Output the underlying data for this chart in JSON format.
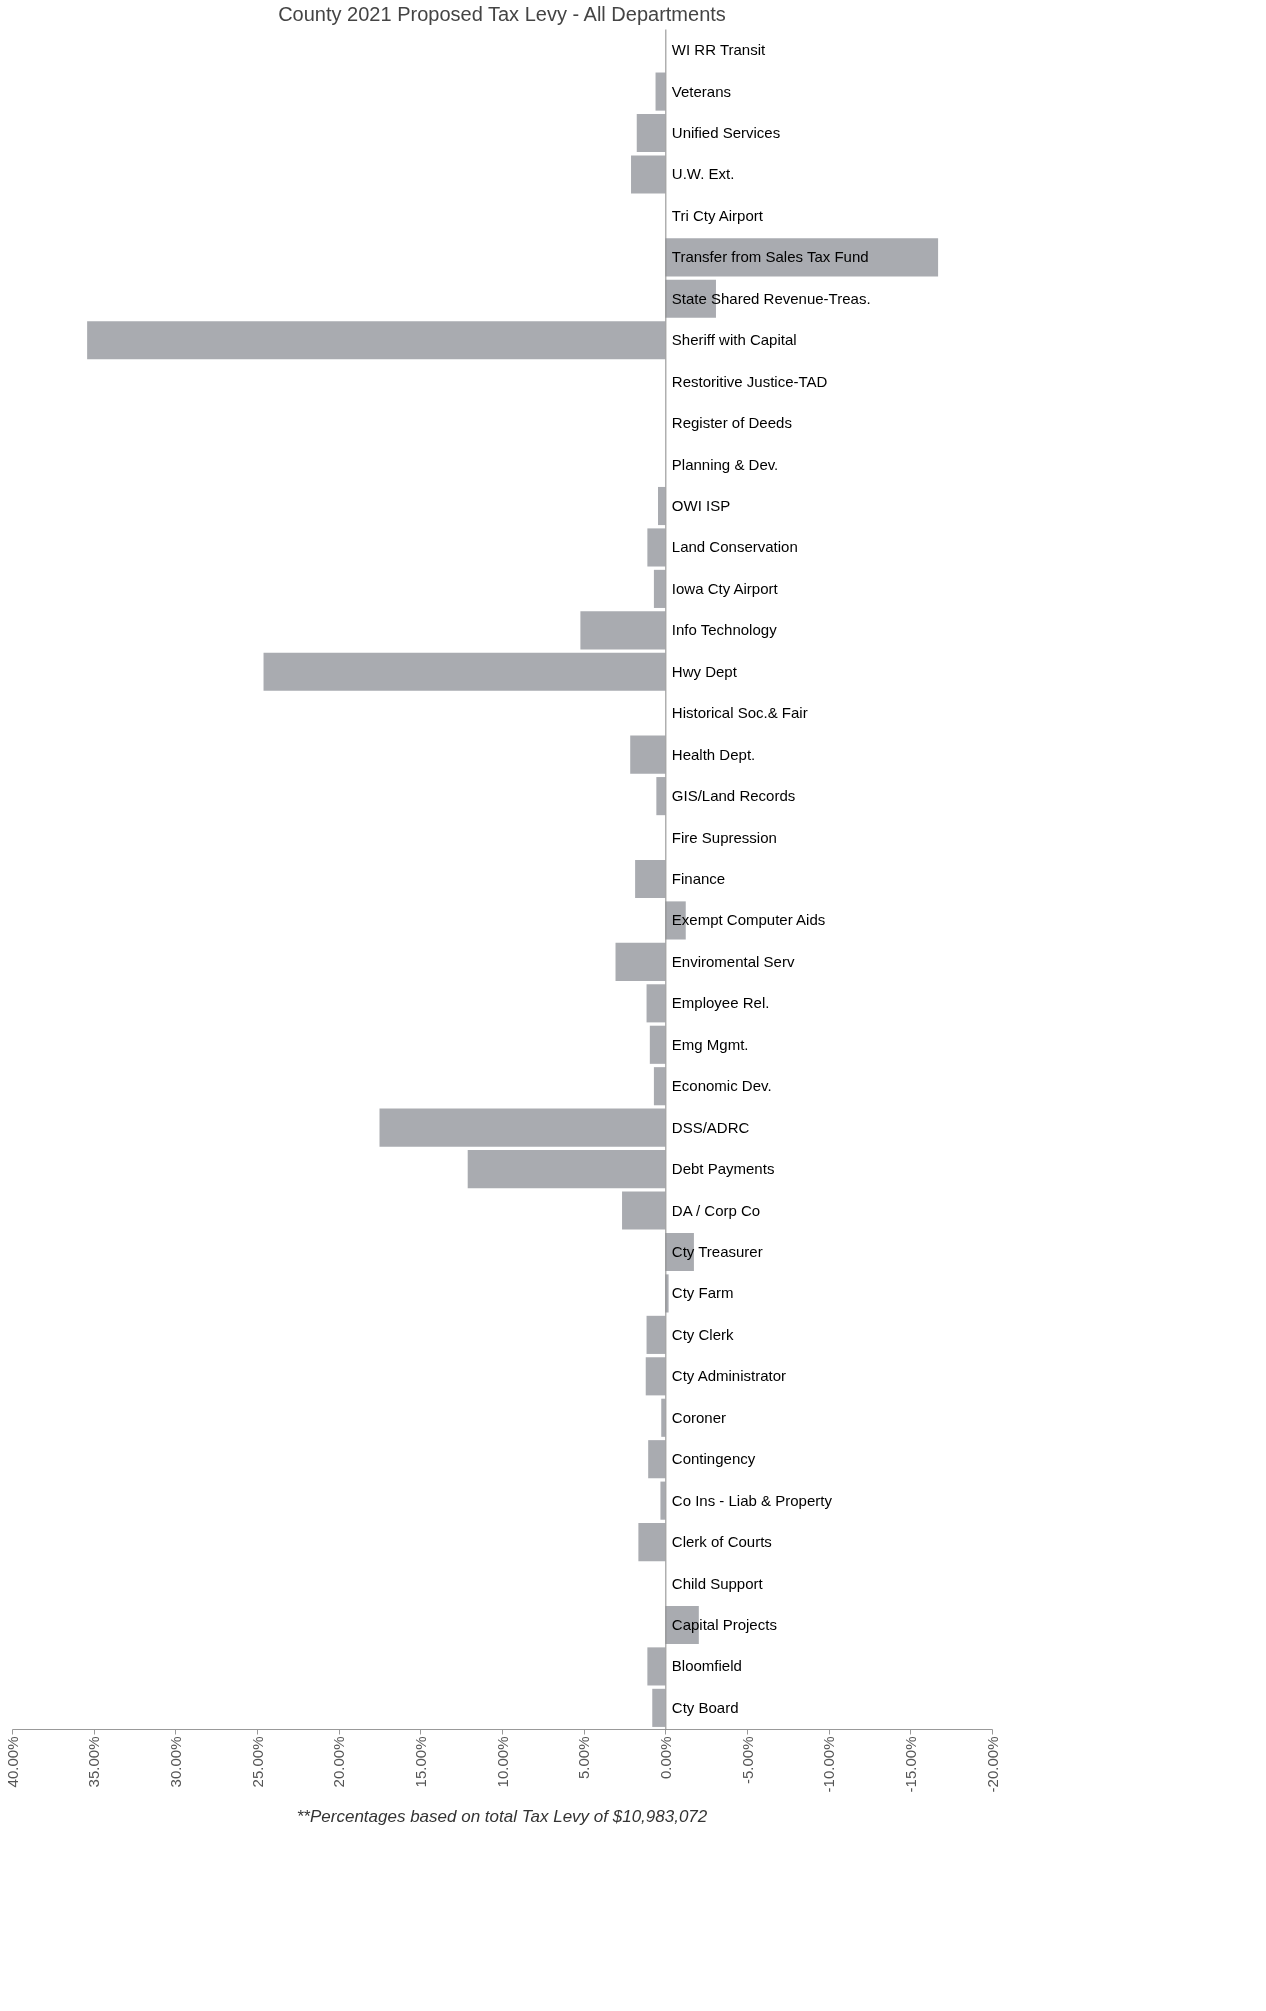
{
  "chart_data": {
    "type": "bar",
    "orientation": "horizontal",
    "title": "County 2021 Proposed Tax Levy - All Departments",
    "categories": [
      "WI RR Transit",
      "Veterans",
      "Unified Services",
      "U.W. Ext.",
      "Tri Cty Airport",
      "Transfer from Sales Tax Fund",
      "State Shared Revenue-Treas.",
      "Sheriff with Capital",
      "Restoritive Justice-TAD",
      "Register of Deeds",
      "Planning & Dev.",
      "OWI ISP",
      "Land Conservation",
      "Iowa Cty Airport",
      "Info Technology",
      "Hwy Dept",
      "Historical Soc.& Fair",
      "Health Dept.",
      "GIS/Land Records",
      "Fire Supression",
      "Finance",
      "Exempt Computer Aids",
      "Enviromental Serv",
      "Employee Rel.",
      "Emg Mgmt.",
      "Economic Dev.",
      "DSS/ADRC",
      "Debt Payments",
      "DA / Corp Co",
      "Cty Treasurer",
      "Cty Farm",
      "Cty Clerk",
      "Cty Administrator",
      "Coroner",
      "Contingency",
      "Co Ins - Liab & Property",
      "Clerk of Courts",
      "Child Support",
      "Capital Projects",
      "Bloomfield",
      "Cty Board"
    ],
    "values": [
      null,
      0.6,
      1.75,
      2.1,
      0,
      -16.7,
      -3.1,
      35.4,
      0,
      null,
      0,
      0.45,
      1.1,
      0.7,
      5.2,
      24.6,
      null,
      2.15,
      0.55,
      0,
      1.85,
      -1.25,
      3.05,
      1.15,
      0.95,
      0.7,
      17.5,
      12.1,
      2.65,
      -1.75,
      -0.2,
      1.15,
      1.2,
      0.25,
      1.05,
      0.3,
      1.65,
      0,
      -2.05,
      1.1,
      0.8
    ],
    "color": "#a9abb0",
    "xlim": [
      40,
      -20
    ],
    "xticks": [
      {
        "value": 40,
        "label": "40.00%"
      },
      {
        "value": 35,
        "label": "35.00%"
      },
      {
        "value": 30,
        "label": "30.00%"
      },
      {
        "value": 25,
        "label": "25.00%"
      },
      {
        "value": 20,
        "label": "20.00%"
      },
      {
        "value": 15,
        "label": "15.00%"
      },
      {
        "value": 10,
        "label": "10.00%"
      },
      {
        "value": 5,
        "label": "5.00%"
      },
      {
        "value": 0,
        "label": "0.00%"
      },
      {
        "value": -5,
        "label": "-5.00%"
      },
      {
        "value": -10,
        "label": "-10.00%"
      },
      {
        "value": -15,
        "label": "-15.00%"
      },
      {
        "value": -20,
        "label": "-20.00%"
      }
    ],
    "annotations": [
      "**Percentages based on total Tax Levy of $10,983,072"
    ]
  }
}
